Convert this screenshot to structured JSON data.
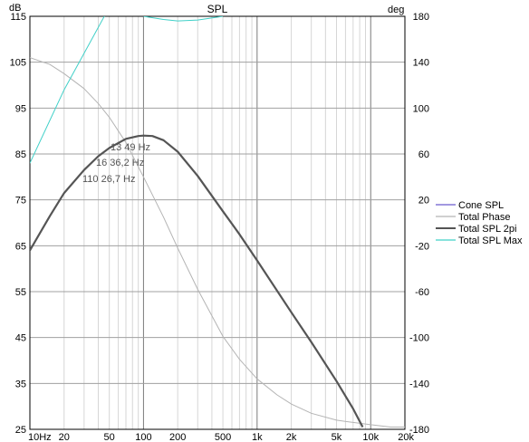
{
  "chart_data": {
    "type": "line",
    "title": "SPL",
    "ylabel_left": "dB",
    "ylabel_right": "deg",
    "x_scale": "log",
    "xlim": [
      10,
      20000
    ],
    "ylim_left": [
      25,
      115
    ],
    "ylim_right": [
      -180,
      180
    ],
    "x_ticks": [
      {
        "value": 10,
        "label": "10Hz"
      },
      {
        "value": 20,
        "label": "20"
      },
      {
        "value": 50,
        "label": "50"
      },
      {
        "value": 100,
        "label": "100"
      },
      {
        "value": 200,
        "label": "200"
      },
      {
        "value": 500,
        "label": "500"
      },
      {
        "value": 1000,
        "label": "1k"
      },
      {
        "value": 2000,
        "label": "2k"
      },
      {
        "value": 5000,
        "label": "5k"
      },
      {
        "value": 10000,
        "label": "10k"
      },
      {
        "value": 20000,
        "label": "20k"
      }
    ],
    "y_ticks_left": [
      "115",
      "105",
      "95",
      "85",
      "75",
      "65",
      "55",
      "45",
      "35",
      "25"
    ],
    "y_ticks_right": [
      "180",
      "140",
      "100",
      "60",
      "20",
      "-20",
      "-60",
      "-100",
      "-140",
      "-180"
    ],
    "grid": true,
    "legend_position": "right-middle",
    "annotations": [
      "13 49 Hz",
      "16 36,2 Hz",
      "110 26,7 Hz"
    ],
    "series": [
      {
        "name": "Cone SPL",
        "color": "#6a5acd",
        "axis": "left",
        "points": []
      },
      {
        "name": "Total Phase",
        "color": "#b4b4b4",
        "axis": "right",
        "points": [
          [
            10,
            144
          ],
          [
            15,
            138
          ],
          [
            20,
            130
          ],
          [
            30,
            117
          ],
          [
            40,
            104
          ],
          [
            50,
            92
          ],
          [
            70,
            70
          ],
          [
            100,
            40
          ],
          [
            150,
            5
          ],
          [
            200,
            -22
          ],
          [
            300,
            -58
          ],
          [
            500,
            -99
          ],
          [
            700,
            -119
          ],
          [
            1000,
            -136
          ],
          [
            1500,
            -150
          ],
          [
            2000,
            -158
          ],
          [
            3000,
            -166
          ],
          [
            5000,
            -172
          ],
          [
            7000,
            -174
          ],
          [
            10000,
            -176
          ],
          [
            15000,
            -178
          ],
          [
            20000,
            -178
          ]
        ]
      },
      {
        "name": "Total SPL 2pi",
        "color": "#555555",
        "axis": "left",
        "points": [
          [
            10,
            64
          ],
          [
            15,
            71.5
          ],
          [
            20,
            76.5
          ],
          [
            30,
            81.5
          ],
          [
            40,
            84.5
          ],
          [
            50,
            86.3
          ],
          [
            70,
            88.3
          ],
          [
            90,
            88.9
          ],
          [
            100,
            89
          ],
          [
            120,
            88.9
          ],
          [
            150,
            88
          ],
          [
            200,
            85.5
          ],
          [
            300,
            80.2
          ],
          [
            500,
            72.5
          ],
          [
            700,
            67.5
          ],
          [
            1000,
            61.8
          ],
          [
            2000,
            50.5
          ],
          [
            3000,
            44
          ],
          [
            5000,
            35.5
          ],
          [
            7000,
            29.5
          ],
          [
            8500,
            25.5
          ]
        ]
      },
      {
        "name": "Total SPL Max",
        "color": "#40d0c8",
        "axis": "left",
        "points": [
          [
            10,
            83
          ],
          [
            20,
            99
          ],
          [
            50,
            117
          ]
        ],
        "segments": [
          [
            [
              100,
              115
            ],
            [
              150,
              114.3
            ],
            [
              200,
              114
            ],
            [
              300,
              114.2
            ],
            [
              500,
              115
            ]
          ]
        ]
      }
    ]
  }
}
